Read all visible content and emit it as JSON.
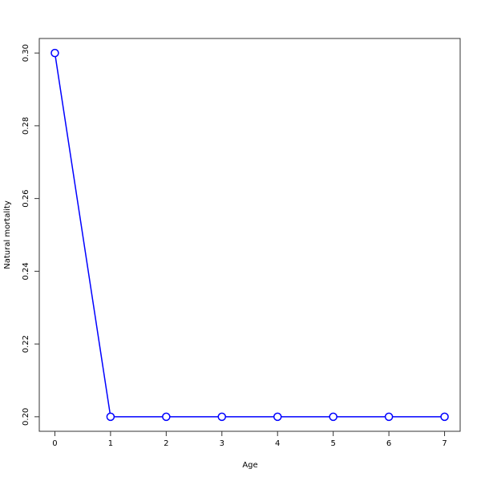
{
  "chart_data": {
    "type": "line",
    "title": "",
    "xlabel": "Age",
    "ylabel": "Natural mortality",
    "x": [
      0,
      1,
      2,
      3,
      4,
      5,
      6,
      7
    ],
    "series": [
      {
        "values": [
          0.3,
          0.2,
          0.2,
          0.2,
          0.2,
          0.2,
          0.2,
          0.2
        ],
        "color": "#0000ff",
        "marker": "open-circle"
      }
    ],
    "xticks": [
      0,
      1,
      2,
      3,
      4,
      5,
      6,
      7
    ],
    "yticks": [
      0.2,
      0.22,
      0.24,
      0.26,
      0.28,
      0.3
    ],
    "ytick_labels": [
      "0.20",
      "0.22",
      "0.24",
      "0.26",
      "0.28",
      "0.30"
    ],
    "xlim": [
      -0.28,
      7.28
    ],
    "ylim": [
      0.196,
      0.304
    ],
    "grid": false
  }
}
